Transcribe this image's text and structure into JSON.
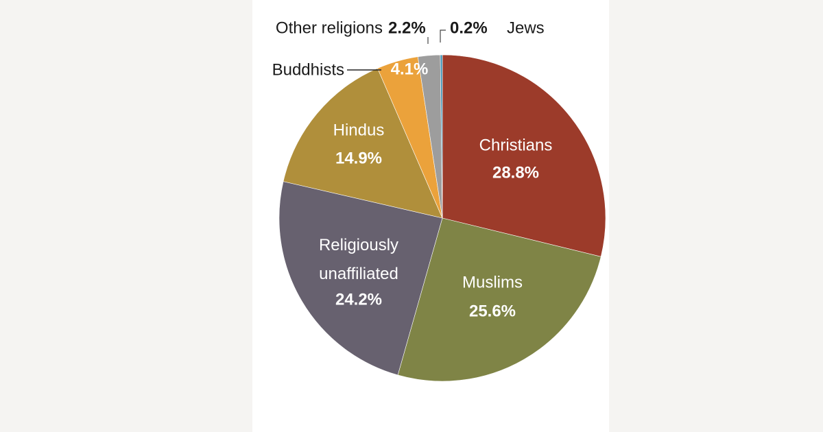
{
  "chart_data": {
    "type": "pie",
    "categories": [
      "Christians",
      "Muslims",
      "Religiously unaffiliated",
      "Hindus",
      "Buddhists",
      "Other religions",
      "Jews"
    ],
    "values": [
      28.8,
      25.6,
      24.2,
      14.9,
      4.1,
      2.2,
      0.2
    ],
    "value_labels": [
      "28.8%",
      "25.6%",
      "24.2%",
      "14.9%",
      "4.1%",
      "2.2%",
      "0.2%"
    ],
    "colors": [
      "#9c3b2a",
      "#7f8446",
      "#67616f",
      "#b08f3b",
      "#eba23b",
      "#9d9d9d",
      "#3f93b5"
    ]
  }
}
